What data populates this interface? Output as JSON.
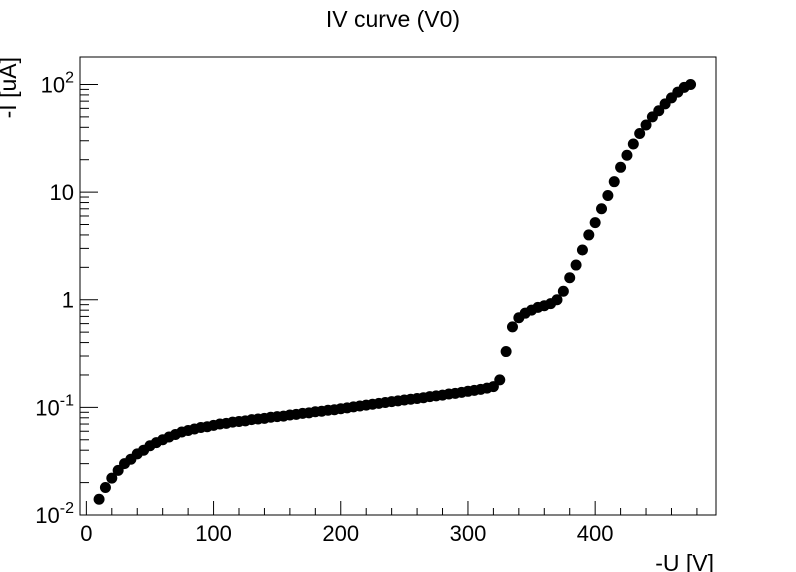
{
  "chart_data": {
    "type": "scatter",
    "title": "IV curve (V0)",
    "xlabel": "-U [V]",
    "ylabel": "-I [uA]",
    "xlim": [
      -5,
      495
    ],
    "ylim": [
      0.01,
      180
    ],
    "yscale": "log",
    "grid": false,
    "x_ticks": [
      "0",
      "100",
      "200",
      "300",
      "400"
    ],
    "y_ticks": [
      {
        "base": "10",
        "exp": "-2"
      },
      {
        "base": "10",
        "exp": "-1"
      },
      {
        "base": "1",
        "exp": ""
      },
      {
        "base": "10",
        "exp": ""
      },
      {
        "base": "10",
        "exp": "2"
      }
    ],
    "marker_color": "#000000",
    "points": [
      [
        10,
        0.014
      ],
      [
        15,
        0.018
      ],
      [
        20,
        0.022
      ],
      [
        25,
        0.026
      ],
      [
        30,
        0.03
      ],
      [
        35,
        0.033
      ],
      [
        40,
        0.037
      ],
      [
        45,
        0.04
      ],
      [
        50,
        0.044
      ],
      [
        55,
        0.047
      ],
      [
        60,
        0.05
      ],
      [
        65,
        0.053
      ],
      [
        70,
        0.056
      ],
      [
        75,
        0.059
      ],
      [
        80,
        0.061
      ],
      [
        85,
        0.063
      ],
      [
        90,
        0.065
      ],
      [
        95,
        0.066
      ],
      [
        100,
        0.068
      ],
      [
        105,
        0.07
      ],
      [
        110,
        0.071
      ],
      [
        115,
        0.073
      ],
      [
        120,
        0.074
      ],
      [
        125,
        0.075
      ],
      [
        130,
        0.077
      ],
      [
        135,
        0.078
      ],
      [
        140,
        0.079
      ],
      [
        145,
        0.081
      ],
      [
        150,
        0.082
      ],
      [
        155,
        0.083
      ],
      [
        160,
        0.085
      ],
      [
        165,
        0.086
      ],
      [
        170,
        0.088
      ],
      [
        175,
        0.089
      ],
      [
        180,
        0.091
      ],
      [
        185,
        0.092
      ],
      [
        190,
        0.094
      ],
      [
        195,
        0.095
      ],
      [
        200,
        0.097
      ],
      [
        205,
        0.099
      ],
      [
        210,
        0.101
      ],
      [
        215,
        0.103
      ],
      [
        220,
        0.105
      ],
      [
        225,
        0.107
      ],
      [
        230,
        0.109
      ],
      [
        235,
        0.111
      ],
      [
        240,
        0.113
      ],
      [
        245,
        0.115
      ],
      [
        250,
        0.117
      ],
      [
        255,
        0.119
      ],
      [
        260,
        0.121
      ],
      [
        265,
        0.123
      ],
      [
        270,
        0.126
      ],
      [
        275,
        0.128
      ],
      [
        280,
        0.13
      ],
      [
        285,
        0.133
      ],
      [
        290,
        0.135
      ],
      [
        295,
        0.138
      ],
      [
        300,
        0.141
      ],
      [
        305,
        0.144
      ],
      [
        310,
        0.147
      ],
      [
        315,
        0.151
      ],
      [
        320,
        0.156
      ],
      [
        325,
        0.18
      ],
      [
        330,
        0.33
      ],
      [
        335,
        0.56
      ],
      [
        340,
        0.68
      ],
      [
        345,
        0.75
      ],
      [
        350,
        0.8
      ],
      [
        355,
        0.85
      ],
      [
        360,
        0.88
      ],
      [
        365,
        0.92
      ],
      [
        370,
        1.0
      ],
      [
        375,
        1.2
      ],
      [
        380,
        1.6
      ],
      [
        385,
        2.1
      ],
      [
        390,
        2.9
      ],
      [
        395,
        4.0
      ],
      [
        400,
        5.2
      ],
      [
        405,
        7.0
      ],
      [
        410,
        9.3
      ],
      [
        415,
        12.5
      ],
      [
        420,
        17
      ],
      [
        425,
        22
      ],
      [
        430,
        28
      ],
      [
        435,
        35
      ],
      [
        440,
        42
      ],
      [
        445,
        50
      ],
      [
        450,
        57
      ],
      [
        455,
        66
      ],
      [
        460,
        75
      ],
      [
        465,
        85
      ],
      [
        470,
        94
      ],
      [
        475,
        100
      ]
    ]
  }
}
